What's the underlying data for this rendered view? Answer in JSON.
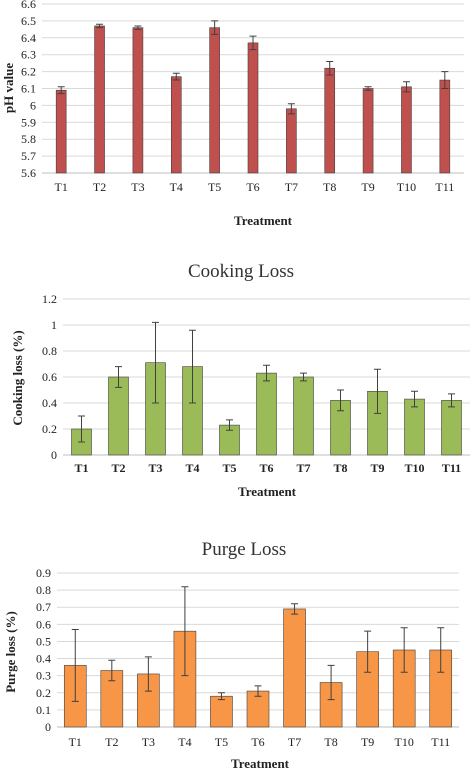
{
  "chart_data": [
    {
      "type": "bar",
      "title": "",
      "xlabel": "Treatment",
      "ylabel": "pH value",
      "ylim": [
        5.6,
        6.6
      ],
      "yticks": [
        "5.6",
        "5.7",
        "5.8",
        "5.9",
        "6",
        "6.1",
        "6.2",
        "6.3",
        "6.4",
        "6.5",
        "6.6"
      ],
      "categories": [
        "T1",
        "T2",
        "T3",
        "T4",
        "T5",
        "T6",
        "T7",
        "T8",
        "T9",
        "T10",
        "T11"
      ],
      "values": [
        6.09,
        6.47,
        6.46,
        6.17,
        6.46,
        6.37,
        5.98,
        6.22,
        6.1,
        6.11,
        6.15
      ],
      "errors": [
        0.02,
        0.01,
        0.01,
        0.02,
        0.04,
        0.04,
        0.03,
        0.04,
        0.01,
        0.03,
        0.05
      ],
      "color": "#c0504d",
      "grid": true
    },
    {
      "type": "bar",
      "title": "Cooking Loss",
      "xlabel": "Treatment",
      "ylabel": "Cooking loss (%)",
      "ylim": [
        0,
        1.2
      ],
      "yticks": [
        "0",
        "0.2",
        "0.4",
        "0.6",
        "0.8",
        "1",
        "1.2"
      ],
      "categories": [
        "T1",
        "T2",
        "T3",
        "T4",
        "T5",
        "T6",
        "T7",
        "T8",
        "T9",
        "T10",
        "T11"
      ],
      "values": [
        0.2,
        0.6,
        0.71,
        0.68,
        0.23,
        0.63,
        0.6,
        0.42,
        0.49,
        0.43,
        0.42
      ],
      "errors": [
        0.1,
        0.08,
        0.31,
        0.28,
        0.04,
        0.06,
        0.03,
        0.08,
        0.17,
        0.06,
        0.05
      ],
      "color": "#9bbb59",
      "grid": true
    },
    {
      "type": "bar",
      "title": "Purge Loss",
      "xlabel": "Treatment",
      "ylabel": "Purge loss (%)",
      "ylim": [
        0,
        0.9
      ],
      "yticks": [
        "0",
        "0.1",
        "0.2",
        "0.3",
        "0.4",
        "0.5",
        "0.6",
        "0.7",
        "0.8",
        "0.9"
      ],
      "categories": [
        "T1",
        "T2",
        "T3",
        "T4",
        "T5",
        "T6",
        "T7",
        "T8",
        "T9",
        "T10",
        "T11"
      ],
      "values": [
        0.36,
        0.33,
        0.31,
        0.56,
        0.18,
        0.21,
        0.69,
        0.26,
        0.44,
        0.45,
        0.45
      ],
      "errors": [
        0.21,
        0.06,
        0.1,
        0.26,
        0.02,
        0.03,
        0.03,
        0.1,
        0.12,
        0.13,
        0.13
      ],
      "color": "#f79646",
      "grid": true
    }
  ]
}
